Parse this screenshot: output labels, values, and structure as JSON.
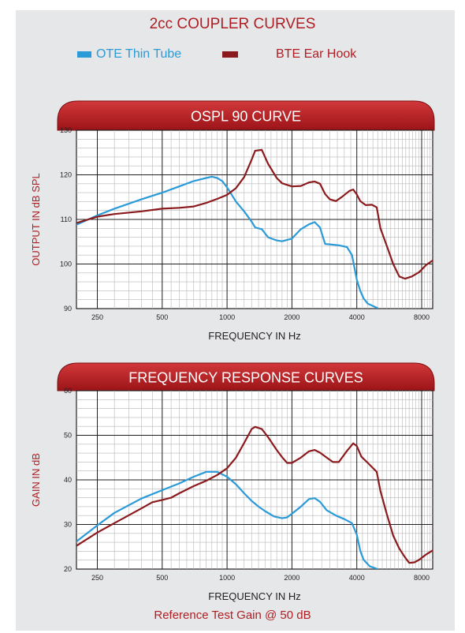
{
  "title": "2cc COUPLER CURVES",
  "footnote": "Reference Test Gain @ 50 dB",
  "legend": [
    {
      "name": "OTE Thin Tube",
      "color": "#2a9ad8"
    },
    {
      "name": "BTE Ear Hook",
      "color": "#8b1a1d"
    }
  ],
  "chart_data": [
    {
      "type": "line",
      "title": "OSPL 90 CURVE",
      "xlabel": "FREQUENCY IN Hz",
      "ylabel": "OUTPUT IN dB SPL",
      "xscale": "log",
      "xlim": [
        200,
        9000
      ],
      "ylim": [
        90,
        130
      ],
      "xticks": [
        250,
        500,
        1000,
        2000,
        4000,
        8000
      ],
      "yticks": [
        90,
        100,
        110,
        120,
        130
      ],
      "grid": true,
      "series": [
        {
          "name": "OTE Thin Tube",
          "color": "#2a9ad8",
          "points": [
            [
              200,
              108.8
            ],
            [
              250,
              110.9
            ],
            [
              300,
              112.4
            ],
            [
              400,
              114.5
            ],
            [
              500,
              116
            ],
            [
              600,
              117.4
            ],
            [
              700,
              118.6
            ],
            [
              800,
              119.3
            ],
            [
              850,
              119.6
            ],
            [
              900,
              119.3
            ],
            [
              950,
              118.6
            ],
            [
              1000,
              117.2
            ],
            [
              1100,
              114
            ],
            [
              1200,
              111.8
            ],
            [
              1300,
              109.5
            ],
            [
              1350,
              108.2
            ],
            [
              1450,
              107.8
            ],
            [
              1550,
              106
            ],
            [
              1700,
              105.3
            ],
            [
              1800,
              105.1
            ],
            [
              2000,
              105.7
            ],
            [
              2200,
              107.8
            ],
            [
              2400,
              108.9
            ],
            [
              2550,
              109.4
            ],
            [
              2700,
              108.2
            ],
            [
              2850,
              104.5
            ],
            [
              3000,
              104.4
            ],
            [
              3300,
              104.2
            ],
            [
              3600,
              103.8
            ],
            [
              3800,
              102
            ],
            [
              4000,
              96.5
            ],
            [
              4150,
              94
            ],
            [
              4300,
              92.3
            ],
            [
              4500,
              91.1
            ],
            [
              4800,
              90.5
            ],
            [
              5000,
              90.1
            ]
          ]
        },
        {
          "name": "BTE Ear Hook",
          "color": "#8b1a1d",
          "points": [
            [
              200,
              109.2
            ],
            [
              250,
              110.6
            ],
            [
              300,
              111.2
            ],
            [
              400,
              111.8
            ],
            [
              500,
              112.4
            ],
            [
              600,
              112.6
            ],
            [
              700,
              112.9
            ],
            [
              800,
              113.7
            ],
            [
              900,
              114.6
            ],
            [
              1000,
              115.5
            ],
            [
              1100,
              117
            ],
            [
              1200,
              119.5
            ],
            [
              1300,
              123.4
            ],
            [
              1350,
              125.4
            ],
            [
              1450,
              125.6
            ],
            [
              1550,
              122.5
            ],
            [
              1700,
              119.3
            ],
            [
              1800,
              118.1
            ],
            [
              2000,
              117.4
            ],
            [
              2200,
              117.5
            ],
            [
              2400,
              118.3
            ],
            [
              2550,
              118.5
            ],
            [
              2700,
              118
            ],
            [
              2850,
              115.7
            ],
            [
              3000,
              114.5
            ],
            [
              3200,
              114.1
            ],
            [
              3400,
              115
            ],
            [
              3700,
              116.4
            ],
            [
              3850,
              116.7
            ],
            [
              4000,
              115.6
            ],
            [
              4150,
              114.1
            ],
            [
              4400,
              113.2
            ],
            [
              4700,
              113.3
            ],
            [
              4950,
              112.7
            ],
            [
              5150,
              108
            ],
            [
              5500,
              104.2
            ],
            [
              5900,
              100
            ],
            [
              6300,
              97.2
            ],
            [
              6700,
              96.7
            ],
            [
              7200,
              97.2
            ],
            [
              7800,
              98.2
            ],
            [
              8400,
              99.8
            ],
            [
              9000,
              100.8
            ]
          ]
        }
      ]
    },
    {
      "type": "line",
      "title": "FREQUENCY RESPONSE CURVES",
      "xlabel": "FREQUENCY IN Hz",
      "ylabel": "GAIN IN dB",
      "xscale": "log",
      "xlim": [
        200,
        9000
      ],
      "ylim": [
        20,
        60
      ],
      "xticks": [
        250,
        500,
        1000,
        2000,
        4000,
        8000
      ],
      "yticks": [
        20,
        30,
        40,
        50,
        60
      ],
      "grid": true,
      "series": [
        {
          "name": "OTE Thin Tube",
          "color": "#2a9ad8",
          "points": [
            [
              200,
              26.2
            ],
            [
              250,
              29.8
            ],
            [
              300,
              32.6
            ],
            [
              400,
              35.8
            ],
            [
              500,
              37.7
            ],
            [
              600,
              39.2
            ],
            [
              700,
              40.7
            ],
            [
              800,
              41.8
            ],
            [
              900,
              41.8
            ],
            [
              1000,
              40.7
            ],
            [
              1100,
              39
            ],
            [
              1200,
              37
            ],
            [
              1300,
              35.3
            ],
            [
              1400,
              34
            ],
            [
              1500,
              33
            ],
            [
              1650,
              31.8
            ],
            [
              1800,
              31.4
            ],
            [
              1900,
              31.6
            ],
            [
              2000,
              32.4
            ],
            [
              2200,
              34
            ],
            [
              2400,
              35.7
            ],
            [
              2550,
              35.9
            ],
            [
              2700,
              35.1
            ],
            [
              2900,
              33.2
            ],
            [
              3200,
              32
            ],
            [
              3500,
              31.2
            ],
            [
              3800,
              30.3
            ],
            [
              4000,
              27.7
            ],
            [
              4150,
              24.1
            ],
            [
              4300,
              22.1
            ],
            [
              4600,
              20.6
            ],
            [
              5000,
              20
            ]
          ]
        },
        {
          "name": "BTE Ear Hook",
          "color": "#8b1a1d",
          "points": [
            [
              200,
              25.2
            ],
            [
              250,
              28.2
            ],
            [
              300,
              30.3
            ],
            [
              400,
              33.6
            ],
            [
              450,
              35
            ],
            [
              500,
              35.5
            ],
            [
              550,
              36
            ],
            [
              600,
              37
            ],
            [
              700,
              38.6
            ],
            [
              800,
              39.8
            ],
            [
              900,
              41.1
            ],
            [
              1000,
              42.6
            ],
            [
              1100,
              45
            ],
            [
              1200,
              48.3
            ],
            [
              1300,
              51.4
            ],
            [
              1350,
              51.9
            ],
            [
              1450,
              51.4
            ],
            [
              1550,
              49.6
            ],
            [
              1700,
              46.7
            ],
            [
              1800,
              45.1
            ],
            [
              1900,
              43.8
            ],
            [
              2000,
              43.8
            ],
            [
              2200,
              45
            ],
            [
              2400,
              46.4
            ],
            [
              2550,
              46.7
            ],
            [
              2700,
              46.1
            ],
            [
              2900,
              45
            ],
            [
              3100,
              44
            ],
            [
              3300,
              44
            ],
            [
              3600,
              46.5
            ],
            [
              3850,
              48.2
            ],
            [
              4000,
              47.6
            ],
            [
              4200,
              45.2
            ],
            [
              4500,
              43.8
            ],
            [
              4950,
              41.8
            ],
            [
              5150,
              37.5
            ],
            [
              5500,
              32.5
            ],
            [
              5900,
              27.5
            ],
            [
              6300,
              24.6
            ],
            [
              6700,
              22.6
            ],
            [
              7000,
              21.4
            ],
            [
              7400,
              21.5
            ],
            [
              7800,
              22.1
            ],
            [
              8400,
              23.3
            ],
            [
              9000,
              24.2
            ]
          ]
        }
      ]
    }
  ]
}
